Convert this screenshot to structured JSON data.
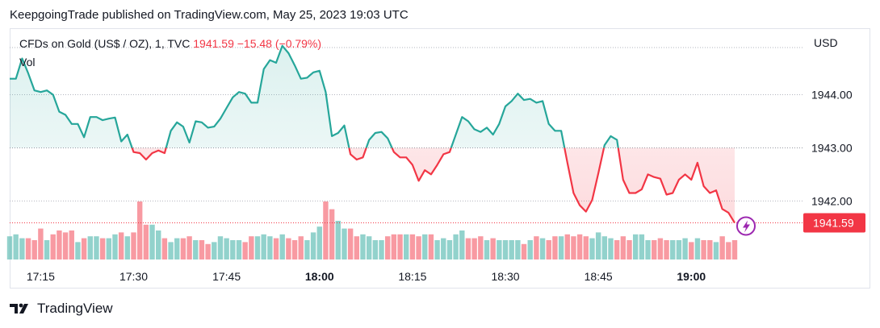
{
  "header": {
    "publish_text": "KeepgoingTrade published on TradingView.com, May 25, 2023 19:03 UTC"
  },
  "legend": {
    "symbol": "CFDs on Gold (US$ / OZ), 1, TVC",
    "price": "1941.59",
    "change": "−15.48 (−0.79%)",
    "volume_label": "Vol"
  },
  "currency": "USD",
  "last_price_label": "1941.59",
  "footer": {
    "brand": "TradingView"
  },
  "colors": {
    "up": "#26a69a",
    "down": "#f23645",
    "grid": "#e0e3eb"
  },
  "chart_data": {
    "type": "area",
    "title": "CFDs on Gold (US$ / OZ), 1, TVC",
    "baseline": 1943.0,
    "ylim": [
      1940.9,
      1945.25
    ],
    "y_ticks": [
      1942.0,
      1943.0,
      1944.0
    ],
    "y_tick_labels": [
      "1942.00",
      "1943.00",
      "1944.00"
    ],
    "x_ticks": [
      "17:15",
      "17:30",
      "17:45",
      "18:00",
      "18:15",
      "18:30",
      "18:45",
      "19:00"
    ],
    "x_ticks_bold": [
      "18:00",
      "19:00"
    ],
    "x_tick_minutes": [
      15,
      30,
      45,
      60,
      75,
      90,
      105,
      120
    ],
    "x_start_minute": 10,
    "last_price": 1941.59,
    "series": [
      {
        "values": [
          1944.3,
          1944.3,
          1944.68,
          1944.4,
          1944.08,
          1944.05,
          1944.08,
          1944.0,
          1943.68,
          1943.62,
          1943.45,
          1943.45,
          1943.2,
          1943.58,
          1943.58,
          1943.52,
          1943.55,
          1943.57,
          1943.12,
          1943.25,
          1942.92,
          1942.9,
          1942.78,
          1942.9,
          1942.95,
          1942.9,
          1943.32,
          1943.48,
          1943.4,
          1943.1,
          1943.5,
          1943.48,
          1943.38,
          1943.4,
          1943.55,
          1943.75,
          1943.95,
          1944.05,
          1944.02,
          1943.85,
          1943.85,
          1944.48,
          1944.65,
          1944.6,
          1944.92,
          1944.78,
          1944.55,
          1944.3,
          1944.32,
          1944.42,
          1944.45,
          1944.05,
          1943.22,
          1943.28,
          1943.42,
          1942.88,
          1942.78,
          1942.82,
          1943.15,
          1943.28,
          1943.3,
          1943.18,
          1942.92,
          1942.82,
          1942.82,
          1942.68,
          1942.38,
          1942.58,
          1942.5,
          1942.68,
          1942.88,
          1942.92,
          1943.25,
          1943.58,
          1943.5,
          1943.35,
          1943.3,
          1943.38,
          1943.25,
          1943.45,
          1943.78,
          1943.88,
          1944.02,
          1943.9,
          1943.92,
          1943.85,
          1943.88,
          1943.45,
          1943.32,
          1943.32,
          1942.72,
          1942.15,
          1941.92,
          1941.8,
          1942.02,
          1942.52,
          1943.05,
          1943.22,
          1943.15,
          1942.4,
          1942.15,
          1942.15,
          1942.22,
          1942.5,
          1942.45,
          1942.42,
          1942.12,
          1942.15,
          1942.4,
          1942.5,
          1942.4,
          1942.72,
          1942.28,
          1942.15,
          1942.2,
          1941.85,
          1941.78,
          1941.59
        ]
      },
      {
        "name": "Vol",
        "values": [
          12,
          13,
          11,
          11,
          10,
          16,
          10,
          13,
          15,
          14,
          15,
          9,
          11,
          12,
          12,
          11,
          11,
          13,
          14,
          12,
          14,
          30,
          18,
          18,
          15,
          11,
          9,
          11,
          11,
          12,
          10,
          10,
          8,
          9,
          12,
          11,
          10,
          10,
          9,
          12,
          12,
          13,
          12,
          11,
          13,
          11,
          10,
          12,
          10,
          14,
          17,
          30,
          26,
          20,
          16,
          16,
          12,
          13,
          12,
          10,
          10,
          12,
          13,
          13,
          13,
          13,
          12,
          13,
          13,
          10,
          11,
          10,
          13,
          15,
          11,
          11,
          12,
          10,
          11,
          10,
          10,
          10,
          10,
          8,
          10,
          12,
          11,
          10,
          12,
          12,
          13,
          12,
          13,
          12,
          11,
          14,
          12,
          11,
          10,
          12,
          10,
          13,
          13,
          10,
          10,
          11,
          10,
          10,
          10,
          11,
          9,
          11,
          10,
          10,
          9,
          12,
          9,
          10,
          16,
          14
        ]
      }
    ]
  }
}
